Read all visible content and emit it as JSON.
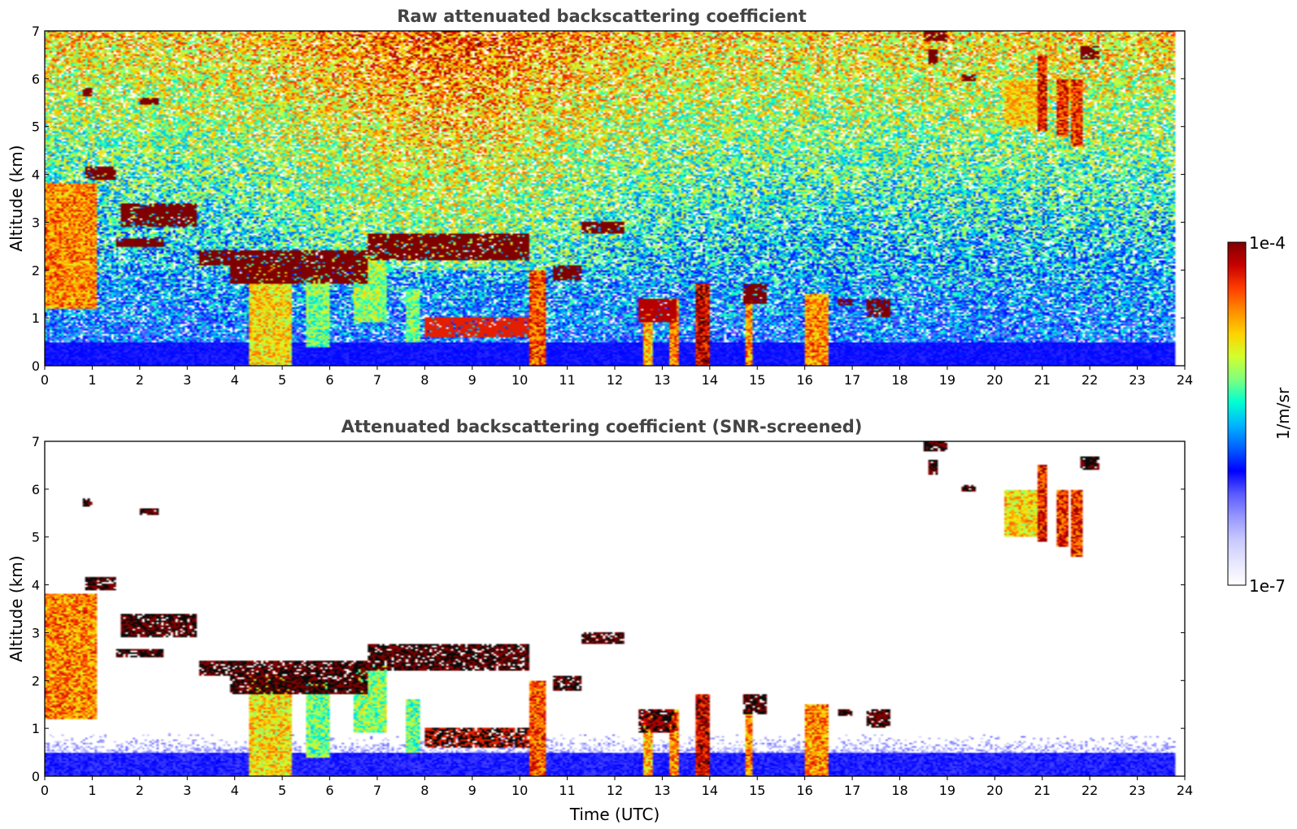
{
  "chart_data": [
    {
      "type": "heatmap",
      "title": "Raw attenuated backscattering coefficient",
      "xlabel": "",
      "ylabel": "Altitude (km)",
      "xlim": [
        0,
        24
      ],
      "ylim": [
        0,
        7
      ],
      "xticks": [
        0,
        1,
        2,
        3,
        4,
        5,
        6,
        7,
        8,
        9,
        10,
        11,
        12,
        13,
        14,
        15,
        16,
        17,
        18,
        19,
        20,
        21,
        22,
        23,
        24
      ],
      "yticks": [
        0,
        1,
        2,
        3,
        4,
        5,
        6,
        7
      ],
      "data_end_time": 23.8,
      "screened": false,
      "grid": false
    },
    {
      "type": "heatmap",
      "title": "Attenuated backscattering coefficient (SNR-screened)",
      "xlabel": "Time (UTC)",
      "ylabel": "Altitude (km)",
      "xlim": [
        0,
        24
      ],
      "ylim": [
        0,
        7
      ],
      "xticks": [
        0,
        1,
        2,
        3,
        4,
        5,
        6,
        7,
        8,
        9,
        10,
        11,
        12,
        13,
        14,
        15,
        16,
        17,
        18,
        19,
        20,
        21,
        22,
        23,
        24
      ],
      "yticks": [
        0,
        1,
        2,
        3,
        4,
        5,
        6,
        7
      ],
      "data_end_time": 23.8,
      "screened": true,
      "grid": false
    }
  ],
  "colorbar": {
    "label": "1/m/sr",
    "min_label": "1e-7",
    "max_label": "1e-4",
    "scale": "log",
    "range": [
      1e-07,
      0.0001
    ],
    "colormap": [
      "#ffffff",
      "#e6e6ff",
      "#c8c8ff",
      "#9696ff",
      "#5a5aff",
      "#0000ff",
      "#0060ff",
      "#00b4ff",
      "#00ffd2",
      "#7fff7f",
      "#d2ff2d",
      "#ffd200",
      "#ff8c00",
      "#ff3c00",
      "#c80000",
      "#800000"
    ]
  },
  "features": {
    "cloud_layers": [
      {
        "x": [
          0.85,
          1.5
        ],
        "y": [
          3.9,
          4.15
        ],
        "v": 1.0
      },
      {
        "x": [
          1.6,
          3.2
        ],
        "y": [
          2.9,
          3.4
        ],
        "v": 1.0
      },
      {
        "x": [
          3.25,
          4.0
        ],
        "y": [
          2.1,
          2.4
        ],
        "v": 1.0
      },
      {
        "x": [
          3.9,
          6.8
        ],
        "y": [
          1.7,
          2.4
        ],
        "v": 1.0
      },
      {
        "x": [
          6.8,
          10.2
        ],
        "y": [
          2.2,
          2.75
        ],
        "v": 1.0
      },
      {
        "x": [
          8.0,
          10.2
        ],
        "y": [
          0.6,
          1.0
        ],
        "v": 0.9
      },
      {
        "x": [
          11.3,
          12.2
        ],
        "y": [
          2.75,
          3.0
        ],
        "v": 1.0
      },
      {
        "x": [
          10.7,
          11.3
        ],
        "y": [
          1.8,
          2.1
        ],
        "v": 1.0
      },
      {
        "x": [
          1.5,
          2.5
        ],
        "y": [
          2.5,
          2.65
        ],
        "v": 1.0
      },
      {
        "x": [
          2.0,
          2.4
        ],
        "y": [
          5.45,
          5.6
        ],
        "v": 1.0
      },
      {
        "x": [
          0.8,
          1.0
        ],
        "y": [
          5.65,
          5.8
        ],
        "v": 1.0
      },
      {
        "x": [
          14.7,
          15.2
        ],
        "y": [
          1.3,
          1.7
        ],
        "v": 1.0
      },
      {
        "x": [
          16.7,
          17.0
        ],
        "y": [
          1.25,
          1.4
        ],
        "v": 1.0
      },
      {
        "x": [
          17.3,
          17.8
        ],
        "y": [
          1.0,
          1.4
        ],
        "v": 1.0
      },
      {
        "x": [
          12.5,
          13.3
        ],
        "y": [
          0.9,
          1.4
        ],
        "v": 0.95
      },
      {
        "x": [
          18.5,
          19.0
        ],
        "y": [
          6.8,
          7.0
        ],
        "v": 1.0
      },
      {
        "x": [
          19.3,
          19.6
        ],
        "y": [
          5.95,
          6.1
        ],
        "v": 1.0
      },
      {
        "x": [
          21.8,
          22.2
        ],
        "y": [
          6.4,
          6.7
        ],
        "v": 1.0
      },
      {
        "x": [
          18.6,
          18.8
        ],
        "y": [
          6.3,
          6.6
        ],
        "v": 1.0
      }
    ],
    "rain_columns": [
      {
        "x": [
          0.0,
          1.1
        ],
        "y": [
          1.2,
          3.8
        ],
        "v": 0.8
      },
      {
        "x": [
          4.3,
          5.2
        ],
        "y": [
          0.0,
          2.1
        ],
        "v": 0.72
      },
      {
        "x": [
          5.5,
          6.0
        ],
        "y": [
          0.4,
          2.0
        ],
        "v": 0.6
      },
      {
        "x": [
          6.5,
          7.2
        ],
        "y": [
          0.9,
          2.3
        ],
        "v": 0.62
      },
      {
        "x": [
          7.6,
          7.9
        ],
        "y": [
          0.5,
          1.6
        ],
        "v": 0.6
      },
      {
        "x": [
          10.2,
          10.55
        ],
        "y": [
          0.0,
          2.0
        ],
        "v": 0.85
      },
      {
        "x": [
          12.6,
          12.8
        ],
        "y": [
          0.0,
          1.3
        ],
        "v": 0.75
      },
      {
        "x": [
          13.15,
          13.35
        ],
        "y": [
          0.0,
          1.4
        ],
        "v": 0.8
      },
      {
        "x": [
          13.7,
          14.0
        ],
        "y": [
          0.0,
          1.7
        ],
        "v": 0.95
      },
      {
        "x": [
          14.75,
          14.9
        ],
        "y": [
          0.0,
          1.5
        ],
        "v": 0.8
      },
      {
        "x": [
          16.0,
          16.5
        ],
        "y": [
          0.0,
          1.5
        ],
        "v": 0.8
      },
      {
        "x": [
          20.2,
          20.9
        ],
        "y": [
          5.0,
          6.0
        ],
        "v": 0.72
      },
      {
        "x": [
          20.9,
          21.1
        ],
        "y": [
          4.9,
          6.5
        ],
        "v": 0.9
      },
      {
        "x": [
          21.3,
          21.55
        ],
        "y": [
          4.8,
          6.0
        ],
        "v": 0.88
      },
      {
        "x": [
          21.6,
          21.85
        ],
        "y": [
          4.6,
          6.0
        ],
        "v": 0.88
      }
    ],
    "aerosol_layer_top_km": 0.5
  }
}
